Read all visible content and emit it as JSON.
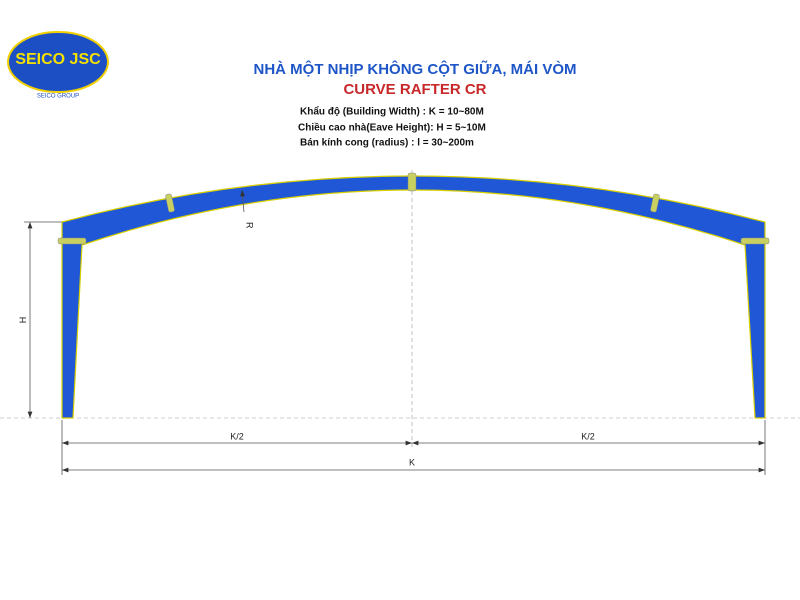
{
  "logo": {
    "name": "SEICO JSC",
    "group": "SEICO GROUP"
  },
  "header": {
    "title": "NHÀ MỘT NHỊP KHÔNG CỘT GIỮA, MÁI VÒM",
    "subtitle": "CURVE RAFTER CR"
  },
  "specs": [
    "Khẩu độ (Building Width) : K = 10~80M",
    "Chiều cao nhà(Eave Height): H = 5~10M",
    "Bán kính cong (radius) : l = 30~200m"
  ],
  "labels": {
    "radius": "R",
    "height": "H",
    "half_left": "K/2",
    "half_right": "K/2",
    "width": "K"
  }
}
